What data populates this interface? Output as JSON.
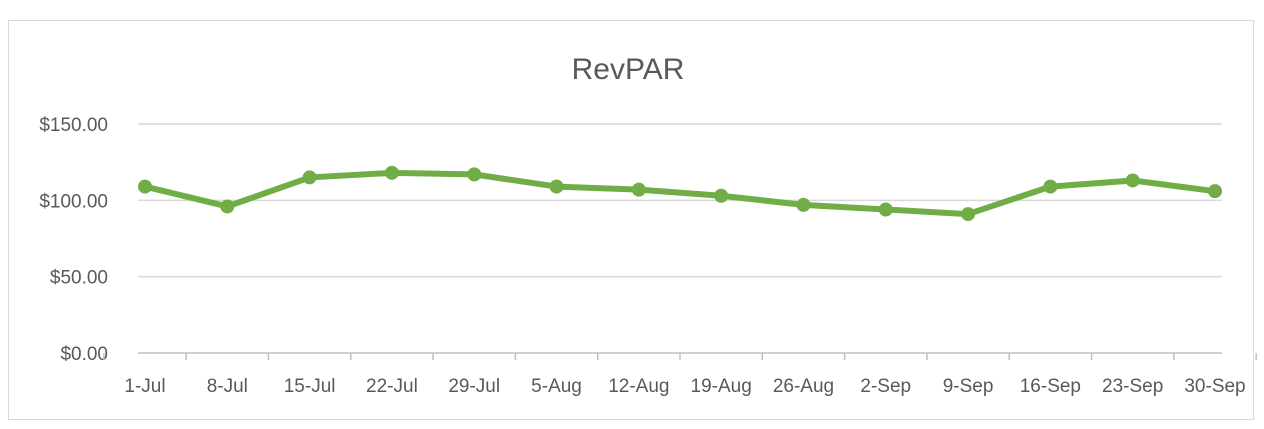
{
  "chart_data": {
    "type": "line",
    "title": "RevPAR",
    "xlabel": "",
    "ylabel": "",
    "categories": [
      "1-Jul",
      "8-Jul",
      "15-Jul",
      "22-Jul",
      "29-Jul",
      "5-Aug",
      "12-Aug",
      "19-Aug",
      "26-Aug",
      "2-Sep",
      "9-Sep",
      "16-Sep",
      "23-Sep",
      "30-Sep"
    ],
    "series": [
      {
        "color": "#70ad47",
        "values": [
          109,
          96,
          115,
          118,
          117,
          109,
          107,
          103,
          97,
          94,
          91,
          109,
          113,
          106
        ]
      }
    ],
    "ylim": [
      0,
      150
    ],
    "y_ticks": [
      0,
      50,
      100,
      150
    ],
    "y_tick_labels": [
      "$0.00",
      "$50.00",
      "$100.00",
      "$150.00"
    ],
    "grid": true,
    "legend": "none",
    "colors": {
      "line": "#70ad47",
      "grid": "#d9d9d9",
      "text": "#595959"
    }
  }
}
